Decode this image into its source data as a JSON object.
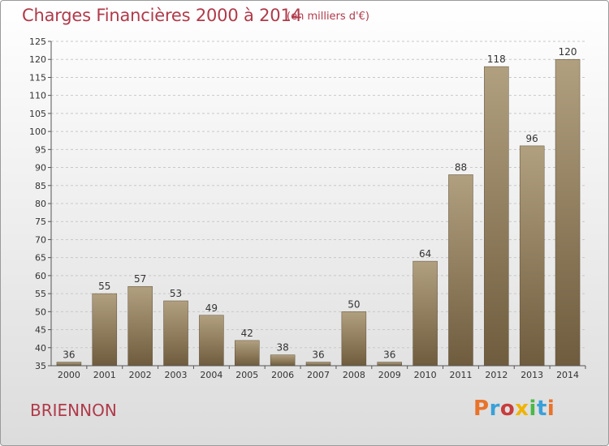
{
  "header": {
    "title": "Charges Financières 2000 à 2014",
    "subtitle": "(en milliers d'€)"
  },
  "footer": {
    "place": "BRIENNON",
    "logo_text": "Proxiti",
    "logo_colors": [
      "#e8732a",
      "#3aa0d8",
      "#c83c3c",
      "#f0b400",
      "#4cb848",
      "#3aa0d8",
      "#e8732a"
    ]
  },
  "colors": {
    "accent": "#b03a4a",
    "bar_top": "#b1a080",
    "bar_bottom": "#6f5c3e"
  },
  "chart_data": {
    "type": "bar",
    "categories": [
      "2000",
      "2001",
      "2002",
      "2003",
      "2004",
      "2005",
      "2006",
      "2007",
      "2008",
      "2009",
      "2010",
      "2011",
      "2012",
      "2013",
      "2014"
    ],
    "values": [
      36,
      55,
      57,
      53,
      49,
      42,
      38,
      36,
      50,
      36,
      64,
      88,
      118,
      96,
      120
    ],
    "ylim": [
      35,
      125
    ],
    "yticks": [
      35,
      40,
      45,
      50,
      55,
      60,
      65,
      70,
      75,
      80,
      85,
      90,
      95,
      100,
      105,
      110,
      115,
      120,
      125
    ],
    "title": "Charges Financières 2000 à 2014",
    "subtitle": "(en milliers d'€)",
    "xlabel": "",
    "ylabel": "",
    "grid": "horizontal dashed"
  }
}
